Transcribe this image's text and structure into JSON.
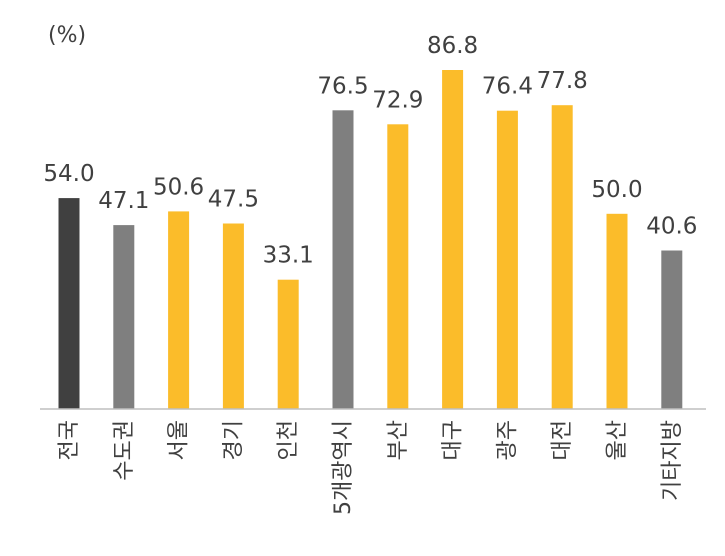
{
  "chart_data": {
    "type": "bar",
    "unit_label": "(%)",
    "categories": [
      "전국",
      "수도권",
      "서울",
      "경기",
      "인천",
      "5개광역시",
      "부산",
      "대구",
      "광주",
      "대전",
      "울산",
      "기타지방"
    ],
    "values": [
      54.0,
      47.1,
      50.6,
      47.5,
      33.1,
      76.5,
      72.9,
      86.8,
      76.4,
      77.8,
      50.0,
      40.6
    ],
    "value_labels": [
      "54.0",
      "47.1",
      "50.6",
      "47.5",
      "33.1",
      "76.5",
      "72.9",
      "86.8",
      "76.4",
      "77.8",
      "50.0",
      "40.6"
    ],
    "bar_colors": [
      "#404040",
      "#7f7f7f",
      "#fbbc2a",
      "#fbbc2a",
      "#fbbc2a",
      "#7f7f7f",
      "#fbbc2a",
      "#fbbc2a",
      "#fbbc2a",
      "#fbbc2a",
      "#fbbc2a",
      "#7f7f7f"
    ],
    "ylim": [
      0,
      100
    ],
    "grid": false,
    "legend": "none"
  }
}
